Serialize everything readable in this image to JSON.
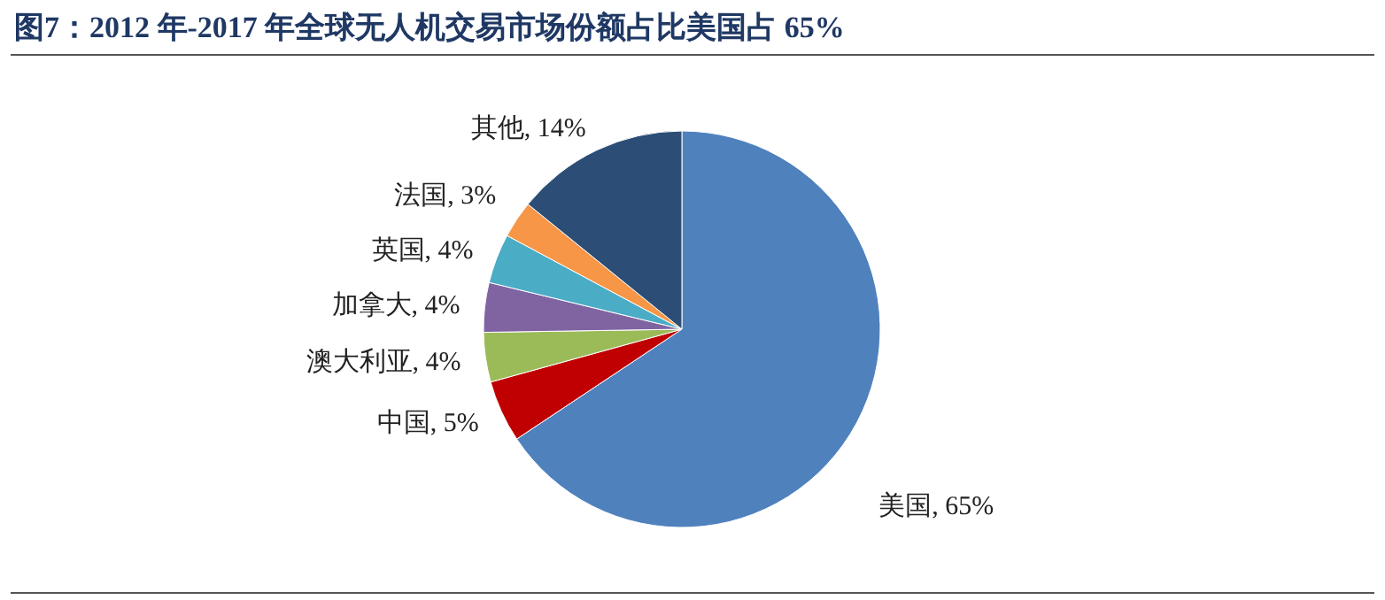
{
  "chart_data": {
    "type": "pie",
    "title": "图7：2012 年-2017 年全球无人机交易市场份额占比美国占 65%",
    "categories": [
      "美国",
      "中国",
      "澳大利亚",
      "加拿大",
      "英国",
      "法国",
      "其他"
    ],
    "values": [
      65,
      5,
      4,
      4,
      4,
      3,
      14
    ],
    "value_labels": [
      "65%",
      "5%",
      "4%",
      "4%",
      "4%",
      "3%",
      "14%"
    ],
    "colors": [
      "#4f81bd",
      "#c00000",
      "#9bbb59",
      "#8064a2",
      "#4bacc6",
      "#f79646",
      "#2c4d75"
    ]
  }
}
